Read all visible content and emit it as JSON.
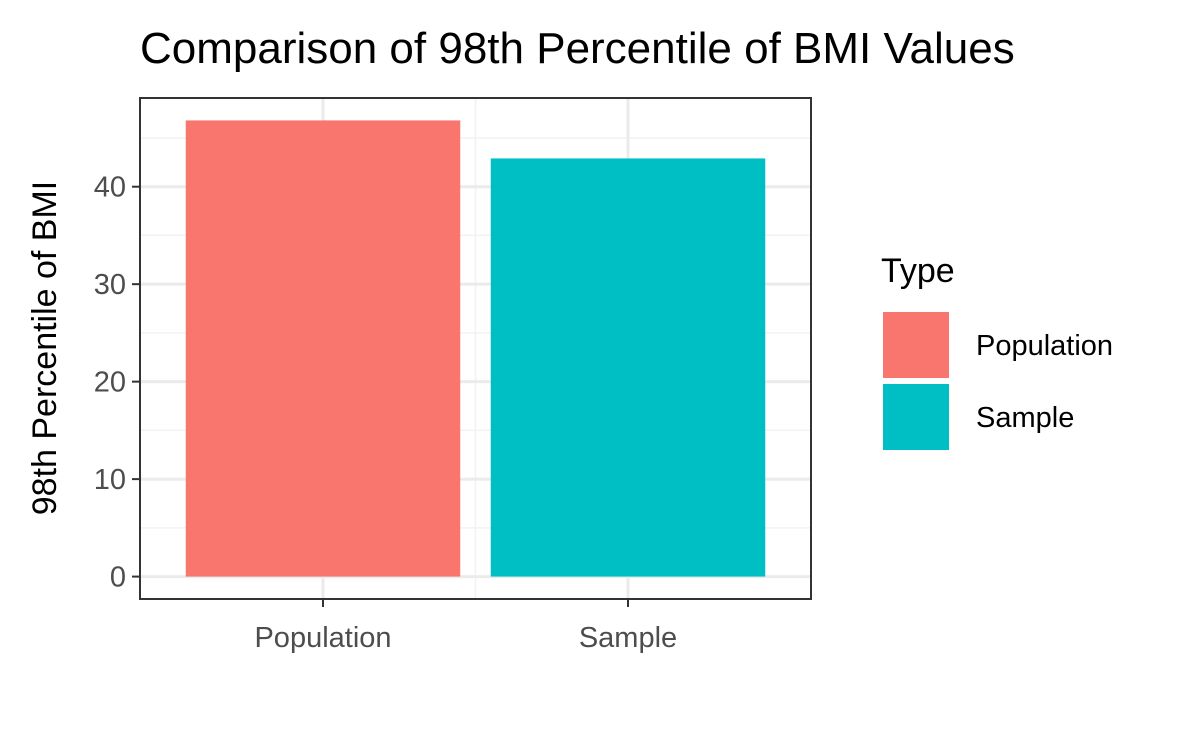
{
  "chart_data": {
    "type": "bar",
    "title": "Comparison of 98th Percentile of BMI Values",
    "xlabel": "",
    "ylabel": "98th Percentile of BMI",
    "categories": [
      "Population",
      "Sample"
    ],
    "values": [
      46.8,
      42.9
    ],
    "colors": [
      "#F8766D",
      "#00BFC4"
    ],
    "ylim": [
      -2.3,
      49.1
    ],
    "yticks": [
      0,
      10,
      20,
      30,
      40
    ],
    "grid": true,
    "legend": {
      "title": "Type",
      "position": "right",
      "entries": [
        "Population",
        "Sample"
      ]
    }
  }
}
